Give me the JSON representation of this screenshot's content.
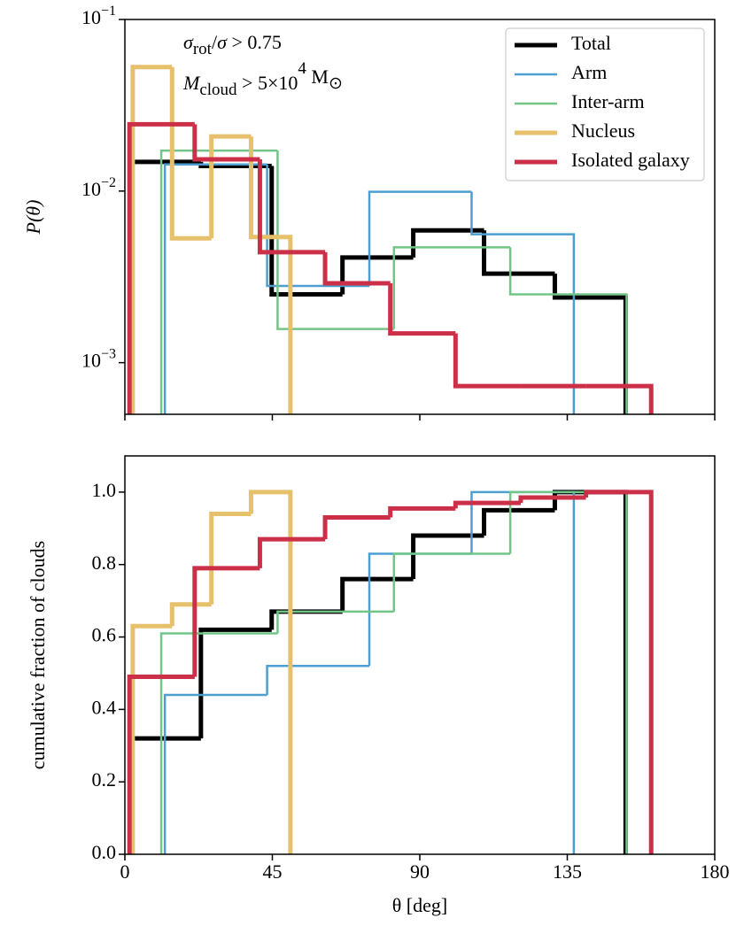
{
  "chart_data": [
    {
      "type": "step",
      "ylabel": "P(θ)",
      "log_y": true,
      "xlim": [
        0,
        180
      ],
      "xticks": [
        0,
        45,
        90,
        135,
        180
      ],
      "ylim": [
        0.0005,
        0.1
      ],
      "yticks": [
        {
          "value": 0.1,
          "label": "10−1"
        },
        {
          "value": 0.01,
          "label": "10−2"
        },
        {
          "value": 0.001,
          "label": "10−3"
        }
      ],
      "legend": "upper right",
      "annotations": [
        [
          {
            "text": "σ",
            "style": "italic"
          },
          {
            "text": "rot",
            "style": "sub"
          },
          {
            "text": "/",
            "style": "normal"
          },
          {
            "text": "σ",
            "style": "italic"
          },
          {
            "text": " > 0.75",
            "style": "normal"
          }
        ],
        [
          {
            "text": "M",
            "style": "italic"
          },
          {
            "text": "cloud",
            "style": "sub"
          },
          {
            "text": " > 5×10",
            "style": "normal"
          },
          {
            "text": "4",
            "style": "sup"
          },
          {
            "text": " M",
            "style": "normal"
          },
          {
            "text": "⊙",
            "style": "sub"
          }
        ]
      ],
      "series": [
        {
          "name": "Total",
          "color": "#000000",
          "linewidth": 5,
          "bins": [
            1.6,
            23.2,
            44.8,
            66.4,
            88.0,
            109.6,
            131.2,
            152.8
          ],
          "values": [
            0.0148,
            0.014,
            0.0025,
            0.0041,
            0.0059,
            0.0033,
            0.0024
          ]
        },
        {
          "name": "Arm",
          "color": "#4c9fd0",
          "linewidth": 2.5,
          "bins": [
            12.2,
            43.4,
            74.6,
            105.8,
            137.0
          ],
          "values": [
            0.0143,
            0.0028,
            0.0099,
            0.0056
          ]
        },
        {
          "name": "Inter-arm",
          "color": "#72c587",
          "linewidth": 2.5,
          "bins": [
            11.1,
            46.6,
            82.1,
            117.6,
            153.1
          ],
          "values": [
            0.0172,
            0.00157,
            0.0047,
            0.0025
          ]
        },
        {
          "name": "Nucleus",
          "color": "#e7c06c",
          "linewidth": 5,
          "bins": [
            2.4,
            14.4,
            26.4,
            38.5,
            50.5
          ],
          "values": [
            0.0528,
            0.0053,
            0.0208,
            0.0054
          ]
        },
        {
          "name": "Isolated galaxy",
          "color": "#cb3048",
          "linewidth": 5,
          "bins": [
            1.4,
            21.3,
            41.2,
            61.1,
            81.0,
            100.9,
            120.8,
            140.7,
            160.6
          ],
          "values": [
            0.0245,
            0.0153,
            0.0044,
            0.0029,
            0.00148,
            0.00073,
            0.00073,
            0.00073
          ]
        }
      ]
    },
    {
      "type": "step",
      "xlabel": "θ [deg]",
      "ylabel": "cumulative fraction of clouds",
      "xlim": [
        0,
        180
      ],
      "xticks": [
        0,
        45,
        90,
        135,
        180
      ],
      "ylim": [
        0,
        1.1
      ],
      "yticks": [
        {
          "value": 0,
          "label": "0.0"
        },
        0.2,
        0.4,
        0.6,
        0.8,
        {
          "value": 1,
          "label": "1.0"
        }
      ],
      "series": [
        {
          "color": "#000000",
          "linewidth": 5,
          "bins": [
            1.6,
            23.2,
            44.8,
            66.4,
            88.0,
            109.6,
            131.2,
            152.8
          ],
          "values": [
            0.32,
            0.62,
            0.67,
            0.76,
            0.88,
            0.95,
            1.0
          ]
        },
        {
          "color": "#4c9fd0",
          "linewidth": 2.5,
          "bins": [
            12.2,
            43.4,
            74.6,
            105.8,
            137.0
          ],
          "values": [
            0.44,
            0.52,
            0.83,
            1.0
          ]
        },
        {
          "color": "#72c587",
          "linewidth": 2.5,
          "bins": [
            11.1,
            46.6,
            82.1,
            117.6,
            153.1
          ],
          "values": [
            0.61,
            0.67,
            0.83,
            1.0
          ]
        },
        {
          "color": "#e7c06c",
          "linewidth": 5,
          "bins": [
            2.4,
            14.4,
            26.4,
            38.5,
            50.5
          ],
          "values": [
            0.63,
            0.69,
            0.94,
            1.0
          ]
        },
        {
          "color": "#cb3048",
          "linewidth": 5,
          "bins": [
            1.4,
            21.3,
            41.2,
            61.1,
            81.0,
            100.9,
            120.8,
            140.7,
            160.6
          ],
          "values": [
            0.49,
            0.79,
            0.87,
            0.93,
            0.955,
            0.97,
            0.985,
            1.0
          ]
        }
      ]
    }
  ]
}
